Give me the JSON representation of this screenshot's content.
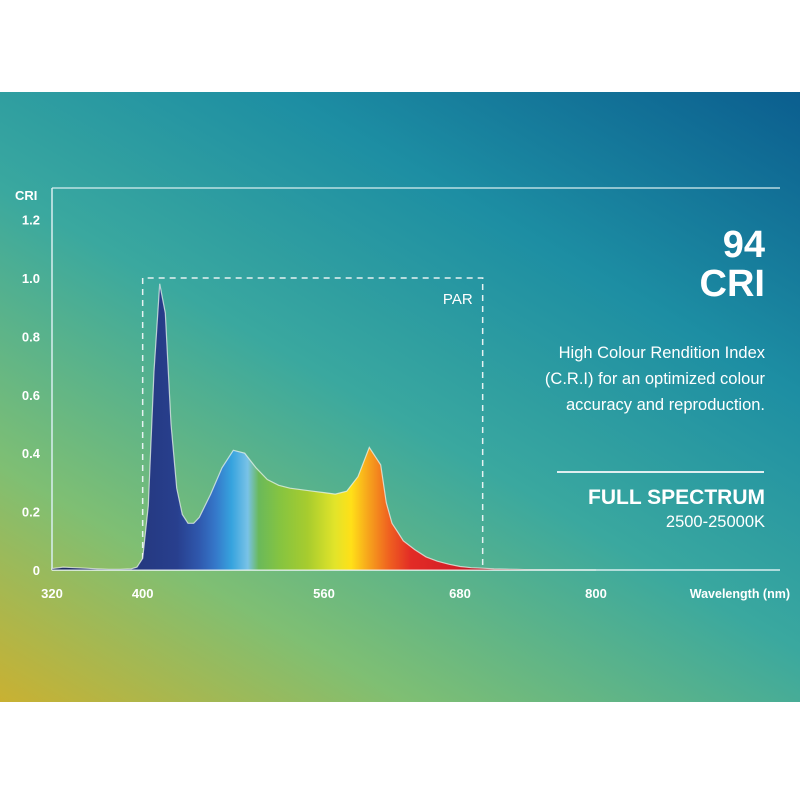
{
  "chart_data": {
    "type": "area",
    "ylabel": "CRI",
    "xlabel": "Wavelength (nm)",
    "y_ticks": [
      0,
      0.2,
      0.4,
      0.6,
      0.8,
      1.0,
      1.2
    ],
    "y_tick_labels": [
      "0",
      "0.2",
      "0.4",
      "0.6",
      "0.8",
      "1.0",
      "1.2"
    ],
    "x_ticks": [
      320,
      400,
      560,
      680,
      800
    ],
    "xlim": [
      320,
      900
    ],
    "ylim": [
      0,
      1.3
    ],
    "fill": "visible-spectrum gradient",
    "x": [
      320,
      330,
      340,
      350,
      360,
      370,
      380,
      390,
      395,
      400,
      405,
      410,
      415,
      420,
      425,
      430,
      435,
      440,
      445,
      450,
      460,
      470,
      480,
      490,
      500,
      510,
      520,
      530,
      540,
      550,
      560,
      570,
      580,
      590,
      600,
      610,
      615,
      620,
      625,
      630,
      640,
      650,
      660,
      670,
      680,
      690,
      700,
      710,
      720,
      730,
      740,
      750,
      760,
      780,
      800
    ],
    "y": [
      0.005,
      0.01,
      0.008,
      0.006,
      0.004,
      0.002,
      0.002,
      0.004,
      0.01,
      0.04,
      0.22,
      0.68,
      0.98,
      0.88,
      0.5,
      0.28,
      0.19,
      0.16,
      0.16,
      0.18,
      0.26,
      0.35,
      0.41,
      0.4,
      0.35,
      0.31,
      0.29,
      0.28,
      0.275,
      0.27,
      0.265,
      0.26,
      0.27,
      0.32,
      0.42,
      0.36,
      0.23,
      0.16,
      0.13,
      0.1,
      0.07,
      0.045,
      0.03,
      0.02,
      0.012,
      0.008,
      0.006,
      0.004,
      0.003,
      0.002,
      0.001,
      0.0005,
      0.0003,
      0.0001,
      0
    ],
    "annotations": [
      {
        "label": "PAR",
        "x_range": [
          400,
          700
        ],
        "y_top": 1.0
      }
    ]
  },
  "info": {
    "cri_value": "94",
    "cri_unit": "CRI",
    "description": [
      "High Colour Rendition Index",
      "(C.R.I) for an optimized colour",
      "accuracy and reproduction."
    ],
    "spectrum_title": "FULL SPECTRUM",
    "spectrum_range": "2500-25000K"
  }
}
